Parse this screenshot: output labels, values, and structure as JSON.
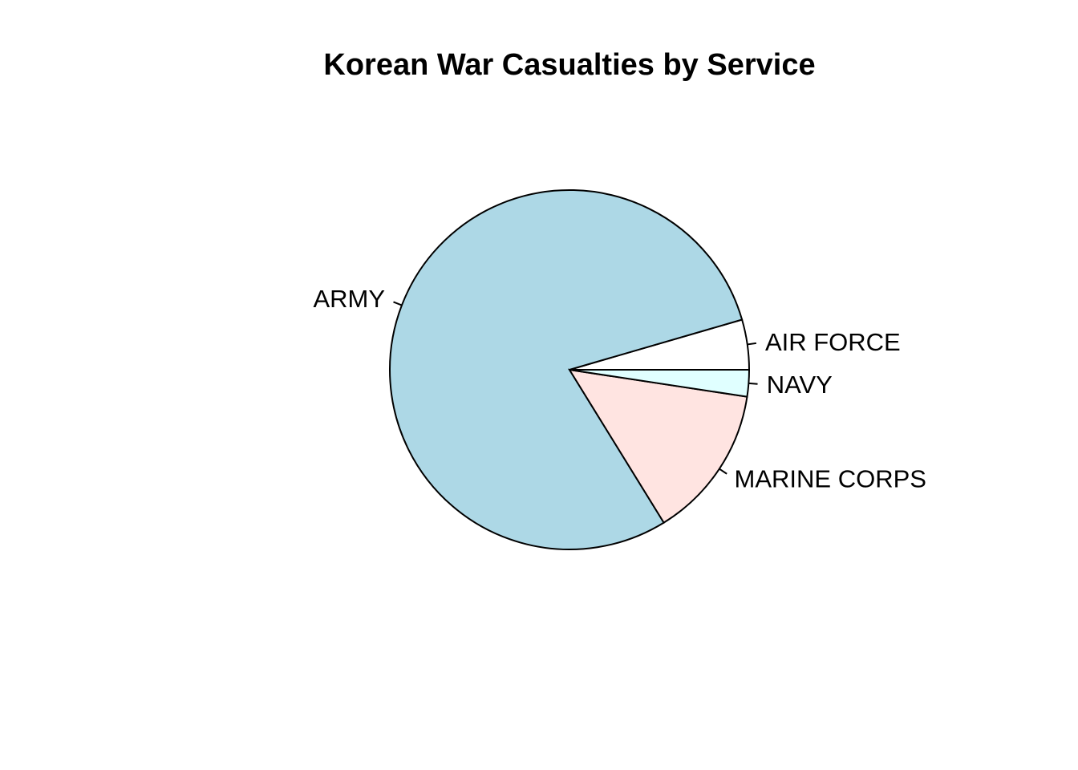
{
  "chart_data": {
    "type": "pie",
    "title": "Korean War Casualties by Service",
    "start_angle_deg": 0,
    "direction": "counterclockwise",
    "slices": [
      {
        "label": "AIR FORCE",
        "value": 4.5,
        "color": "#FFFFFF"
      },
      {
        "label": "ARMY",
        "value": 79.3,
        "color": "#ADD8E6"
      },
      {
        "label": "MARINE CORPS",
        "value": 13.8,
        "color": "#FFE4E1"
      },
      {
        "label": "NAVY",
        "value": 2.4,
        "color": "#E0FFFF"
      }
    ]
  }
}
